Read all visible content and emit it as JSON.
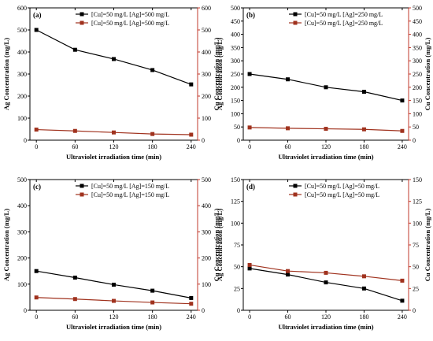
{
  "colors": {
    "ag": "#000000",
    "cu": "#a0321e",
    "right_axis": "#c0392b"
  },
  "chart_data": [
    {
      "type": "line",
      "panel_label": "(a)",
      "x": [
        0,
        60,
        120,
        180,
        240
      ],
      "xlabel": "Ultraviolet irradiation time (min)",
      "xticks": [
        0,
        60,
        120,
        180,
        240
      ],
      "ylabel_left": "Ag Concentration (mg/L)",
      "ylabel_right": "Cu Concentration (mg/L)",
      "ylim": [
        0,
        600
      ],
      "yticks": [
        0,
        100,
        200,
        300,
        400,
        500,
        600
      ],
      "legend_position": "top-right",
      "series": [
        {
          "name": "[Cu]=50 mg/L [Ag]=500 mg/L",
          "marker": "square",
          "color": "#000000",
          "values": [
            500,
            410,
            368,
            318,
            253
          ]
        },
        {
          "name": "[Cu]=50 mg/L [Ag]=500 mg/L",
          "marker": "square",
          "color": "#a0321e",
          "values": [
            48,
            42,
            35,
            28,
            25
          ]
        }
      ]
    },
    {
      "type": "line",
      "panel_label": "(b)",
      "x": [
        0,
        60,
        120,
        180,
        240
      ],
      "xlabel": "Ultraviolet irradiation time (min)",
      "xticks": [
        0,
        60,
        120,
        180,
        240
      ],
      "ylabel_left": "Ag Concentration (mg/L)",
      "ylabel_right": "Cu Concentration (mg/L)",
      "ylim": [
        0,
        500
      ],
      "yticks": [
        0,
        50,
        100,
        150,
        200,
        250,
        300,
        350,
        400,
        450,
        500
      ],
      "legend_position": "top-right",
      "series": [
        {
          "name": "[Cu]=50 mg/L [Ag]=250 mg/L",
          "marker": "square",
          "color": "#000000",
          "values": [
            250,
            230,
            200,
            183,
            150
          ]
        },
        {
          "name": "[Cu]=50 mg/L [Ag]=250 mg/L",
          "marker": "square",
          "color": "#a0321e",
          "values": [
            48,
            45,
            43,
            41,
            35
          ]
        }
      ]
    },
    {
      "type": "line",
      "panel_label": "(c)",
      "x": [
        0,
        60,
        120,
        180,
        240
      ],
      "xlabel": "Ultraviolet irradiation time (min)",
      "xticks": [
        0,
        60,
        120,
        180,
        240
      ],
      "ylabel_left": "Ag Concentration (mg/L)",
      "ylabel_right": "Cu Concentration (mg/L)",
      "ylim": [
        0,
        500
      ],
      "yticks": [
        0,
        100,
        200,
        300,
        400,
        500
      ],
      "legend_position": "top-right",
      "series": [
        {
          "name": "[Cu]=50 mg/L [Ag]=150 mg/L",
          "marker": "square",
          "color": "#000000",
          "values": [
            150,
            125,
            98,
            75,
            47
          ]
        },
        {
          "name": "[Cu]=50 mg/L [Ag]=150 mg/L",
          "marker": "square",
          "color": "#a0321e",
          "values": [
            49,
            43,
            36,
            30,
            25
          ]
        }
      ]
    },
    {
      "type": "line",
      "panel_label": "(d)",
      "x": [
        0,
        60,
        120,
        180,
        240
      ],
      "xlabel": "Ultraviolet irradiation time (min)",
      "xticks": [
        0,
        60,
        120,
        180,
        240
      ],
      "ylabel_left": "Ag Concentration (mg/L)",
      "ylabel_right": "Cu Concentration (mg/L)",
      "ylim": [
        0,
        150
      ],
      "yticks": [
        0,
        25,
        50,
        75,
        100,
        125,
        150
      ],
      "legend_position": "top-right",
      "series": [
        {
          "name": "[Cu]=50 mg/L [Ag]=50 mg/L",
          "marker": "square",
          "color": "#000000",
          "values": [
            48,
            41,
            32,
            25,
            11
          ]
        },
        {
          "name": "[Cu]=50 mg/L [Ag]=50 mg/L",
          "marker": "square",
          "color": "#a0321e",
          "values": [
            52,
            45,
            43,
            39,
            34
          ]
        }
      ]
    }
  ]
}
